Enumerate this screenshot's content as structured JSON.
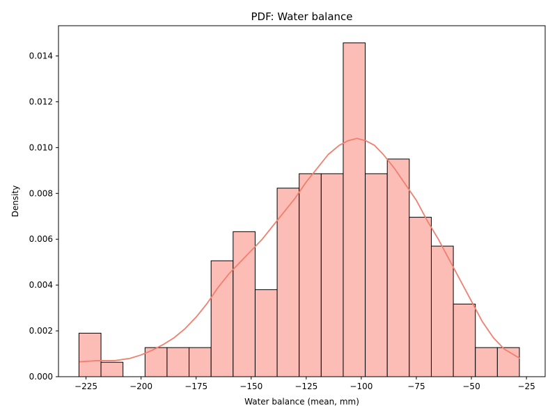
{
  "chart_data": {
    "type": "bar",
    "title": "PDF: Water balance",
    "xlabel": "Water balance (mean, mm)",
    "ylabel": "Density",
    "xlim": [
      -237.5,
      -16.5
    ],
    "ylim": [
      0,
      0.01532
    ],
    "grid": false,
    "x_ticks": [
      -225,
      -200,
      -175,
      -150,
      -125,
      -100,
      -75,
      -50,
      -25
    ],
    "x_tick_labels": [
      "−225",
      "−200",
      "−175",
      "−150",
      "−125",
      "−100",
      "−75",
      "−50",
      "−25"
    ],
    "y_ticks": [
      0,
      0.002,
      0.004,
      0.006,
      0.008,
      0.01,
      0.012,
      0.014
    ],
    "y_tick_labels": [
      "0.000",
      "0.002",
      "0.004",
      "0.006",
      "0.008",
      "0.010",
      "0.012",
      "0.014"
    ],
    "bin_edges": [
      -228.2,
      -218.2,
      -208.2,
      -198.2,
      -188.2,
      -178.2,
      -168.2,
      -158.2,
      -148.2,
      -138.2,
      -128.2,
      -118.2,
      -108.2,
      -98.2,
      -88.2,
      -78.2,
      -68.2,
      -58.2,
      -48.2,
      -38.2,
      -28.2
    ],
    "values": [
      0.0019,
      0.00063,
      0.0,
      0.00127,
      0.00127,
      0.00127,
      0.00506,
      0.00633,
      0.0038,
      0.00823,
      0.00886,
      0.00886,
      0.01457,
      0.00886,
      0.0095,
      0.00696,
      0.0057,
      0.00317,
      0.00127,
      0.00127
    ],
    "kde": {
      "x": [
        -228,
        -220,
        -212,
        -205,
        -200,
        -195,
        -190,
        -185,
        -180,
        -175,
        -170,
        -165,
        -160,
        -155,
        -150,
        -145,
        -140,
        -135,
        -130,
        -125,
        -120,
        -115,
        -110,
        -106,
        -102,
        -98,
        -94,
        -90,
        -85,
        -80,
        -75,
        -70,
        -65,
        -60,
        -55,
        -50,
        -45,
        -40,
        -35,
        -28
      ],
      "y": [
        0.00065,
        0.0007,
        0.0007,
        0.0008,
        0.00095,
        0.00115,
        0.0014,
        0.0017,
        0.0021,
        0.0026,
        0.0032,
        0.0039,
        0.0045,
        0.005,
        0.0055,
        0.006,
        0.0066,
        0.0072,
        0.0078,
        0.0085,
        0.0091,
        0.0097,
        0.0101,
        0.0103,
        0.0104,
        0.0103,
        0.0101,
        0.0097,
        0.0091,
        0.0084,
        0.0077,
        0.0068,
        0.006,
        0.0051,
        0.0042,
        0.0033,
        0.0024,
        0.0017,
        0.0012,
        0.0008
      ]
    },
    "colors": {
      "bar_fill": "#fbbdb6",
      "bar_edge": "#000000",
      "kde_line": "#f07f6e",
      "axis": "#000000"
    }
  }
}
